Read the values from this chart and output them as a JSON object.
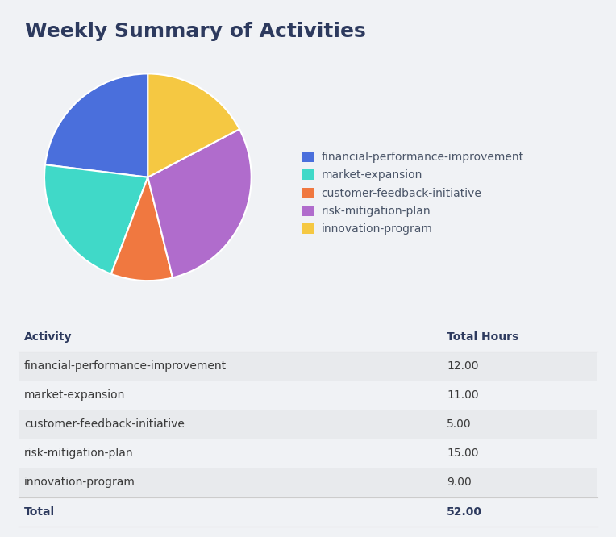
{
  "title": "Weekly Summary of Activities",
  "activities": [
    "financial-performance-improvement",
    "market-expansion",
    "customer-feedback-initiative",
    "risk-mitigation-plan",
    "innovation-program"
  ],
  "hours": [
    12.0,
    11.0,
    5.0,
    15.0,
    9.0
  ],
  "total": 52.0,
  "colors": [
    "#4a6fdc",
    "#40d9c8",
    "#f07840",
    "#b06ccc",
    "#f5c842"
  ],
  "background_color": "#f0f2f5",
  "title_color": "#2d3a5e",
  "table_header_color": "#2d3a5e",
  "table_row_alt_color": "#e8eaed",
  "table_row_color": "#f5f6f8",
  "table_text_color": "#3a3a3a",
  "legend_text_color": "#4a5568",
  "title_fontsize": 18,
  "legend_fontsize": 10,
  "table_fontsize": 10
}
